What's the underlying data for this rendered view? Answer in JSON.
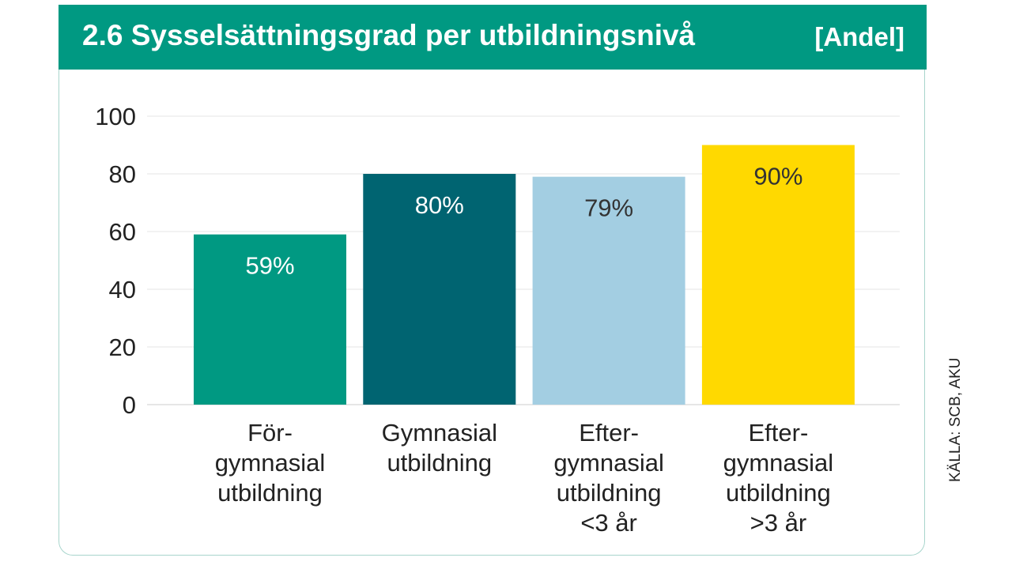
{
  "header": {
    "title": "2.6  Sysselsättningsgrad per utbildningsnivå",
    "unit": "[Andel]"
  },
  "source": "KÄLLA: SCB, AKU",
  "colors": {
    "header_bg": "#009982",
    "bar_1": "#009982",
    "bar_2": "#006471",
    "bar_3": "#a3cee2",
    "bar_4": "#ffd900"
  },
  "chart_data": {
    "type": "bar",
    "title": "2.6  Sysselsättningsgrad per utbildningsnivå",
    "ylabel": "",
    "xlabel": "",
    "ylim": [
      0,
      100
    ],
    "yticks": [
      0,
      20,
      40,
      60,
      80,
      100
    ],
    "grid": true,
    "categories": [
      [
        "För-",
        "gymnasial",
        "utbildning"
      ],
      [
        "Gymnasial",
        "utbildning"
      ],
      [
        "Efter-",
        "gymnasial",
        "utbildning",
        "<3 år"
      ],
      [
        "Efter-",
        "gymnasial",
        "utbildning",
        ">3 år"
      ]
    ],
    "values": [
      59,
      80,
      79,
      90
    ],
    "data_labels": [
      "59%",
      "80%",
      "79%",
      "90%"
    ],
    "bar_colors": [
      "#009982",
      "#006471",
      "#a3cee2",
      "#ffd900"
    ],
    "label_colors": [
      "#ffffff",
      "#ffffff",
      "#333333",
      "#333333"
    ]
  }
}
